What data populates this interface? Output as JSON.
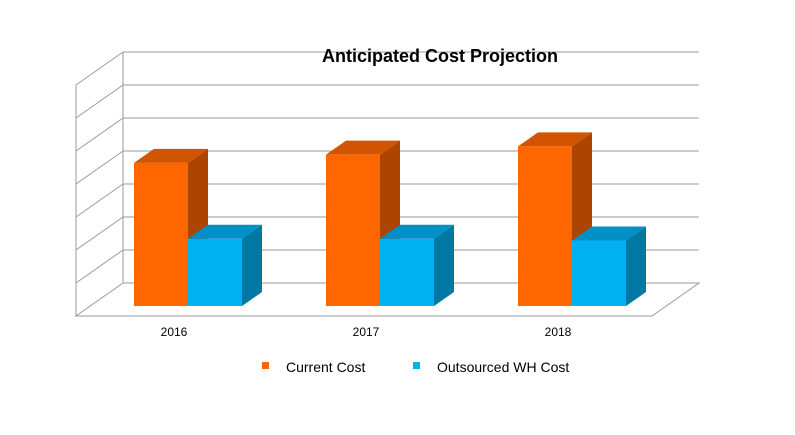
{
  "chart_data": {
    "type": "bar",
    "title": "Anticipated Cost Projection",
    "categories": [
      "2016",
      "2017",
      "2018"
    ],
    "series": [
      {
        "name": "Current Cost",
        "values": [
          4.7,
          4.95,
          5.2
        ],
        "color": "#ff6600"
      },
      {
        "name": "Outsourced WH Cost",
        "values": [
          2.4,
          2.4,
          2.35
        ],
        "color": "#00b0f0"
      }
    ],
    "ylim": [
      0,
      7
    ],
    "grid": true,
    "three_d": true,
    "legend_position": "bottom"
  }
}
